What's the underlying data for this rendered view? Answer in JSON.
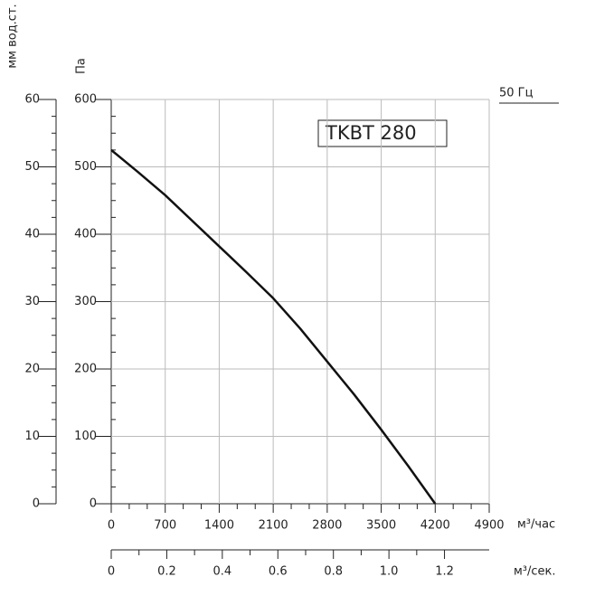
{
  "chart_data": {
    "type": "line",
    "legend_label": "TKBT 280",
    "frequency_label": "50 Гц",
    "y_label": "Па",
    "y2_label": "мм вод.ст.",
    "x_label": "м³/час",
    "x2_label": "м³/сек.",
    "series": [
      {
        "name": "TKBT 280",
        "color": "#111111",
        "x": [
          0,
          350,
          700,
          1050,
          1400,
          1750,
          2100,
          2450,
          2800,
          3150,
          3500,
          3850,
          4200
        ],
        "values": [
          525,
          492,
          458,
          420,
          382,
          344,
          305,
          260,
          211,
          162,
          110,
          56,
          0
        ]
      }
    ],
    "xlim": [
      0,
      4900
    ],
    "xticks": [
      0,
      700,
      1400,
      2100,
      2800,
      3500,
      4200,
      4900
    ],
    "x2lim": [
      0,
      1.361
    ],
    "x2ticks": [
      0,
      0.2,
      0.4,
      0.6,
      0.8,
      {
        "value": 1,
        "label": "1.0"
      },
      1.2
    ],
    "ylim": [
      0,
      600
    ],
    "yticks": [
      0,
      100,
      200,
      300,
      400,
      500,
      600
    ],
    "y2lim": [
      0,
      60
    ],
    "y2ticks": [
      0,
      10,
      20,
      30,
      40,
      50,
      60
    ],
    "grid": true
  }
}
